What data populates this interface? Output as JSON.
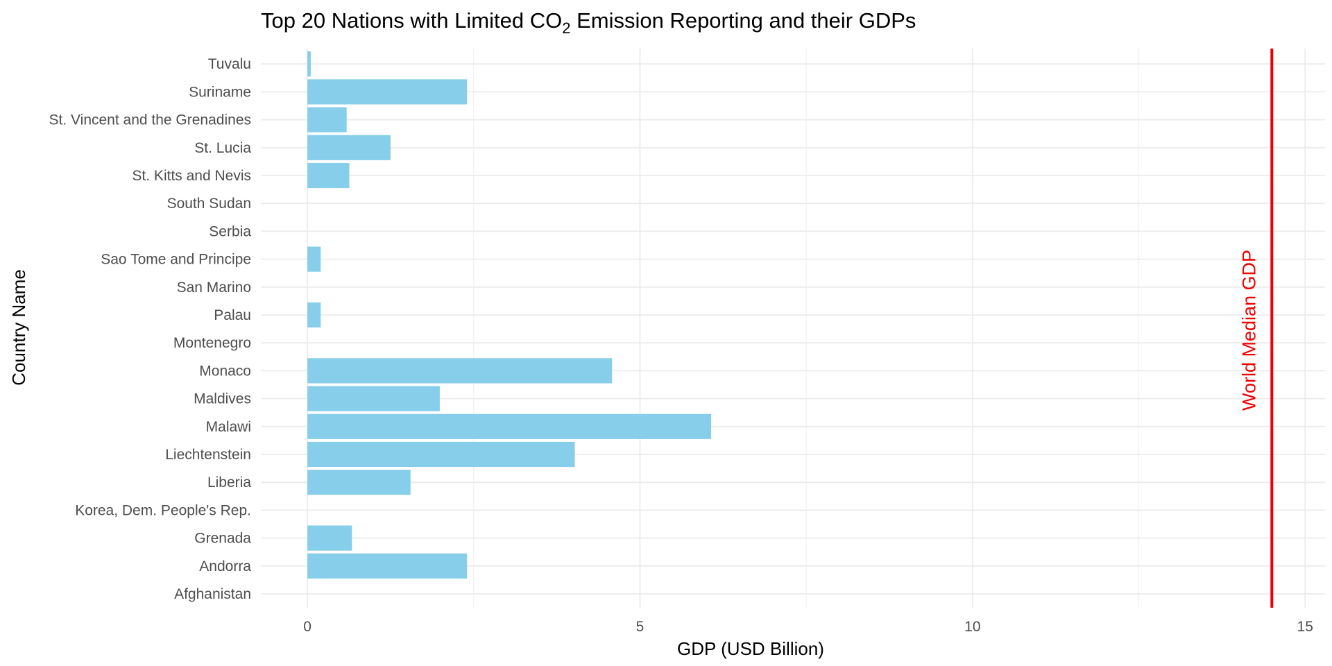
{
  "chart_data": {
    "type": "bar",
    "orientation": "horizontal",
    "title": {
      "prefix": "Top 20 Nations with Limited CO",
      "subscript": "2",
      "suffix": " Emission Reporting and their GDPs"
    },
    "xlabel": "GDP (USD Billion)",
    "ylabel": "Country Name",
    "xlim": [
      -0.7,
      15.3
    ],
    "xticks": [
      0,
      5,
      10,
      15
    ],
    "grid": true,
    "bar_color": "#87CEEB",
    "categories": [
      "Afghanistan",
      "Andorra",
      "Grenada",
      "Korea, Dem. People's Rep.",
      "Liberia",
      "Liechtenstein",
      "Malawi",
      "Maldives",
      "Monaco",
      "Montenegro",
      "Palau",
      "San Marino",
      "Sao Tome and Principe",
      "Serbia",
      "South Sudan",
      "St. Kitts and Nevis",
      "St. Lucia",
      "St. Vincent and the Grenadines",
      "Suriname",
      "Tuvalu"
    ],
    "values": [
      0,
      2.4,
      0.67,
      0,
      1.55,
      4.02,
      6.07,
      1.99,
      4.58,
      0,
      0.2,
      0,
      0.2,
      0,
      0,
      0.63,
      1.25,
      0.59,
      2.4,
      0.05
    ],
    "reference_line": {
      "label": "World Median GDP",
      "value": 14.5,
      "color": "#EE0000"
    }
  }
}
